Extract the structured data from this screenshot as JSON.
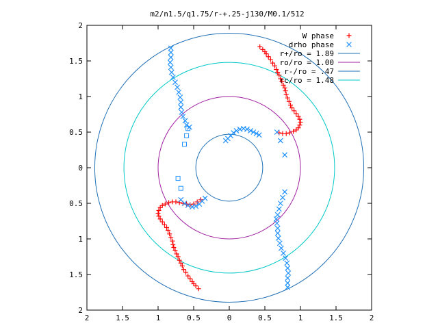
{
  "chart_data": {
    "type": "scatter",
    "title": "m2/n1.5/q1.75/r-+.25-j130/M0.1/512",
    "xlabel": "",
    "ylabel": "",
    "xlim": [
      -2,
      2
    ],
    "ylim": [
      -2,
      2
    ],
    "x_tick_values": [
      -2,
      -1.5,
      -1,
      -0.5,
      0,
      0.5,
      1,
      1.5,
      2
    ],
    "x_tick_labels": [
      "2",
      "1.5",
      "1",
      "0.5",
      "0",
      "0.5",
      "1",
      "1.5",
      "2"
    ],
    "y_tick_values": [
      2,
      1.5,
      1,
      0.5,
      0,
      -0.5,
      -1,
      -1.5,
      -2
    ],
    "y_tick_labels": [
      "2",
      "1.5",
      "1",
      "0.5",
      "0",
      "0.5",
      "1",
      "1.5",
      "2"
    ],
    "grid": false,
    "legend_position": "top-right",
    "series": [
      {
        "name": "W phase",
        "marker": "+",
        "color": "#ff0000",
        "points": [
          [
            0.43,
            1.7
          ],
          [
            0.47,
            1.66
          ],
          [
            0.5,
            1.63
          ],
          [
            0.52,
            1.6
          ],
          [
            0.55,
            1.56
          ],
          [
            0.58,
            1.52
          ],
          [
            0.61,
            1.47
          ],
          [
            0.64,
            1.43
          ],
          [
            0.66,
            1.38
          ],
          [
            0.68,
            1.34
          ],
          [
            0.7,
            1.3
          ],
          [
            0.72,
            1.25
          ],
          [
            0.74,
            1.21
          ],
          [
            0.76,
            1.16
          ],
          [
            0.78,
            1.12
          ],
          [
            0.79,
            1.08
          ],
          [
            0.8,
            1.03
          ],
          [
            0.82,
            0.98
          ],
          [
            0.84,
            0.93
          ],
          [
            0.86,
            0.88
          ],
          [
            0.88,
            0.84
          ],
          [
            0.91,
            0.8
          ],
          [
            0.94,
            0.76
          ],
          [
            0.97,
            0.72
          ],
          [
            0.99,
            0.68
          ],
          [
            1.0,
            0.64
          ],
          [
            0.99,
            0.6
          ],
          [
            0.97,
            0.56
          ],
          [
            0.94,
            0.53
          ],
          [
            0.9,
            0.51
          ],
          [
            0.85,
            0.49
          ],
          [
            0.8,
            0.48
          ],
          [
            0.75,
            0.48
          ],
          [
            0.7,
            0.49
          ],
          [
            -0.43,
            -1.7
          ],
          [
            -0.47,
            -1.66
          ],
          [
            -0.5,
            -1.63
          ],
          [
            -0.52,
            -1.6
          ],
          [
            -0.55,
            -1.56
          ],
          [
            -0.58,
            -1.52
          ],
          [
            -0.61,
            -1.47
          ],
          [
            -0.64,
            -1.43
          ],
          [
            -0.66,
            -1.38
          ],
          [
            -0.68,
            -1.34
          ],
          [
            -0.7,
            -1.3
          ],
          [
            -0.72,
            -1.25
          ],
          [
            -0.74,
            -1.21
          ],
          [
            -0.76,
            -1.16
          ],
          [
            -0.78,
            -1.12
          ],
          [
            -0.79,
            -1.08
          ],
          [
            -0.8,
            -1.03
          ],
          [
            -0.82,
            -0.98
          ],
          [
            -0.84,
            -0.93
          ],
          [
            -0.86,
            -0.88
          ],
          [
            -0.88,
            -0.84
          ],
          [
            -0.91,
            -0.8
          ],
          [
            -0.94,
            -0.76
          ],
          [
            -0.97,
            -0.72
          ],
          [
            -0.99,
            -0.68
          ],
          [
            -1.0,
            -0.64
          ],
          [
            -0.99,
            -0.6
          ],
          [
            -0.97,
            -0.56
          ],
          [
            -0.94,
            -0.53
          ],
          [
            -0.9,
            -0.51
          ],
          [
            -0.85,
            -0.49
          ],
          [
            -0.8,
            -0.48
          ],
          [
            -0.75,
            -0.48
          ],
          [
            -0.7,
            -0.49
          ],
          [
            -0.65,
            -0.5
          ],
          [
            -0.6,
            -0.51
          ],
          [
            -0.55,
            -0.52
          ],
          [
            -0.5,
            -0.51
          ],
          [
            -0.45,
            -0.48
          ],
          [
            -0.4,
            -0.45
          ]
        ]
      },
      {
        "name": "drho phase",
        "marker": "x",
        "color": "#1e90ff",
        "points": [
          [
            -0.82,
            1.68
          ],
          [
            -0.82,
            1.62
          ],
          [
            -0.82,
            1.55
          ],
          [
            -0.83,
            1.48
          ],
          [
            -0.82,
            1.41
          ],
          [
            -0.81,
            1.34
          ],
          [
            -0.79,
            1.27
          ],
          [
            -0.76,
            1.2
          ],
          [
            -0.73,
            1.13
          ],
          [
            -0.71,
            1.06
          ],
          [
            -0.69,
            0.99
          ],
          [
            -0.68,
            0.92
          ],
          [
            -0.68,
            0.85
          ],
          [
            -0.67,
            0.78
          ],
          [
            -0.65,
            0.72
          ],
          [
            -0.62,
            0.66
          ],
          [
            -0.6,
            0.6
          ],
          [
            -0.56,
            0.57
          ],
          [
            -0.05,
            0.38
          ],
          [
            -0.02,
            0.41
          ],
          [
            0.02,
            0.45
          ],
          [
            0.06,
            0.49
          ],
          [
            0.1,
            0.52
          ],
          [
            0.15,
            0.54
          ],
          [
            0.2,
            0.55
          ],
          [
            0.25,
            0.54
          ],
          [
            0.3,
            0.52
          ],
          [
            0.34,
            0.5
          ],
          [
            0.38,
            0.48
          ],
          [
            0.42,
            0.46
          ],
          [
            0.67,
            0.5
          ],
          [
            0.72,
            0.38
          ],
          [
            0.78,
            0.18
          ],
          [
            0.82,
            -1.68
          ],
          [
            0.82,
            -1.62
          ],
          [
            0.82,
            -1.55
          ],
          [
            0.83,
            -1.48
          ],
          [
            0.82,
            -1.41
          ],
          [
            0.81,
            -1.34
          ],
          [
            0.79,
            -1.27
          ],
          [
            0.76,
            -1.2
          ],
          [
            0.73,
            -1.13
          ],
          [
            0.71,
            -1.06
          ],
          [
            0.69,
            -0.99
          ],
          [
            0.68,
            -0.92
          ],
          [
            0.68,
            -0.85
          ],
          [
            0.67,
            -0.78
          ],
          [
            0.66,
            -0.72
          ],
          [
            0.68,
            -0.66
          ],
          [
            0.7,
            -0.58
          ],
          [
            0.72,
            -0.5
          ],
          [
            0.75,
            -0.42
          ],
          [
            0.78,
            -0.34
          ],
          [
            -0.68,
            -0.45
          ],
          [
            -0.63,
            -0.5
          ],
          [
            -0.58,
            -0.53
          ],
          [
            -0.52,
            -0.55
          ],
          [
            -0.47,
            -0.54
          ],
          [
            -0.42,
            -0.51
          ],
          [
            -0.38,
            -0.47
          ],
          [
            -0.34,
            -0.43
          ]
        ]
      },
      {
        "name": "drho phase (open squares)",
        "marker": "square",
        "color": "#1e90ff",
        "points": [
          [
            -0.58,
            0.55
          ],
          [
            -0.6,
            0.45
          ],
          [
            -0.63,
            0.33
          ],
          [
            -0.72,
            -0.15
          ],
          [
            -0.68,
            -0.29
          ]
        ]
      }
    ],
    "circles": [
      {
        "name": "r+/ro = 1.89",
        "radius": 1.89,
        "color": "#1f6fb5"
      },
      {
        "name": "ro/ro = 1.00",
        "radius": 1.0,
        "color": "#a020a0"
      },
      {
        "name": "r-/ro = .47",
        "radius": 0.47,
        "color": "#1f6fb5"
      },
      {
        "name": "rc/ro = 1.48",
        "radius": 1.48,
        "color": "#00c8c8"
      }
    ],
    "legend": [
      {
        "label": "W phase",
        "kind": "plus",
        "color": "#ff0000"
      },
      {
        "label": "drho phase",
        "kind": "cross",
        "color": "#1e90ff"
      },
      {
        "label": "r+/ro = 1.89",
        "kind": "line",
        "color": "#1f6fb5"
      },
      {
        "label": "ro/ro = 1.00",
        "kind": "line",
        "color": "#a020a0"
      },
      {
        "label": "r-/ro = .47",
        "kind": "line",
        "color": "#1f6fb5"
      },
      {
        "label": "rc/ro = 1.48",
        "kind": "line",
        "color": "#00c8c8"
      }
    ]
  }
}
